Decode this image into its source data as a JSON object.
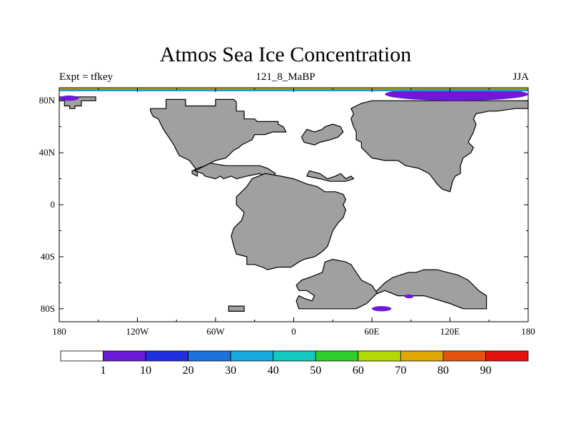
{
  "title": "Atmos Sea Ice Concentration",
  "left_label": "Expt = tfkey",
  "center_label": "121_8_MaBP",
  "right_label": "JJA",
  "chart_data": {
    "type": "heatmap",
    "x_axis": {
      "range": [
        -180,
        180
      ],
      "ticks": [
        -180,
        -120,
        -60,
        0,
        60,
        120,
        180
      ],
      "tick_labels": [
        "180",
        "120W",
        "60W",
        "0",
        "60E",
        "120E",
        "180"
      ]
    },
    "y_axis": {
      "range": [
        -90,
        90
      ],
      "ticks": [
        80,
        40,
        0,
        -40,
        -80
      ],
      "tick_labels": [
        "80N",
        "40N",
        "0",
        "40S",
        "80S"
      ]
    },
    "land_color": "#a0a0a0",
    "colorbar": {
      "levels": [
        "1",
        "10",
        "20",
        "30",
        "40",
        "50",
        "60",
        "70",
        "80",
        "90"
      ],
      "colors": [
        "#ffffff",
        "#6a1ad8",
        "#1f2fe0",
        "#1e72e0",
        "#16aadd",
        "#12c9c0",
        "#2dcf2a",
        "#b2d806",
        "#e0a800",
        "#e4530d",
        "#e51210"
      ]
    },
    "ice_regions": [
      {
        "lon": [
          -180,
          -165
        ],
        "lat": [
          80,
          84
        ],
        "value": "1-10"
      },
      {
        "lon": [
          70,
          180
        ],
        "lat": [
          80,
          90
        ],
        "value": "1-10"
      },
      {
        "lon": [
          60,
          75
        ],
        "lat": [
          -82,
          -78
        ],
        "value": "1-10"
      },
      {
        "lon": [
          85,
          92
        ],
        "lat": [
          -72,
          -69
        ],
        "value": "1-10"
      }
    ],
    "land_polygons": [
      [
        [
          -180,
          83
        ],
        [
          -152,
          83
        ],
        [
          -152,
          80
        ],
        [
          -163,
          80
        ],
        [
          -163,
          76
        ],
        [
          -168,
          76
        ],
        [
          -168,
          74
        ],
        [
          -172,
          74
        ],
        [
          -172,
          76
        ],
        [
          -176,
          76
        ],
        [
          -176,
          80
        ],
        [
          -180,
          80
        ]
      ],
      [
        [
          -98,
          81
        ],
        [
          -83,
          81
        ],
        [
          -83,
          76
        ],
        [
          -60,
          76
        ],
        [
          -60,
          81
        ],
        [
          -46,
          81
        ],
        [
          -44,
          79
        ],
        [
          -44,
          72
        ],
        [
          -38,
          72
        ],
        [
          -38,
          66
        ],
        [
          -30,
          66
        ],
        [
          -28,
          64
        ],
        [
          -12,
          64
        ],
        [
          -12,
          62
        ],
        [
          -8,
          60
        ],
        [
          -6,
          56
        ],
        [
          -16,
          56
        ],
        [
          -22,
          54
        ],
        [
          -30,
          54
        ],
        [
          -32,
          50
        ],
        [
          -36,
          48
        ],
        [
          -40,
          46
        ],
        [
          -42,
          44
        ],
        [
          -46,
          42
        ],
        [
          -52,
          36
        ],
        [
          -60,
          34
        ],
        [
          -64,
          32
        ],
        [
          -68,
          30
        ],
        [
          -74,
          28
        ],
        [
          -78,
          26
        ],
        [
          -78,
          24
        ],
        [
          -74,
          22
        ],
        [
          -74,
          26
        ],
        [
          -80,
          34
        ],
        [
          -88,
          38
        ],
        [
          -92,
          46
        ],
        [
          -96,
          52
        ],
        [
          -100,
          58
        ],
        [
          -102,
          62
        ],
        [
          -104,
          66
        ],
        [
          -108,
          68
        ],
        [
          -110,
          72
        ],
        [
          -110,
          74
        ],
        [
          -98,
          74
        ]
      ],
      [
        [
          -76,
          26
        ],
        [
          -70,
          24
        ],
        [
          -68,
          22
        ],
        [
          -60,
          20
        ],
        [
          -56,
          22
        ],
        [
          -54,
          20
        ],
        [
          -48,
          22
        ],
        [
          -44,
          20
        ],
        [
          -36,
          22
        ],
        [
          -26,
          24
        ],
        [
          -18,
          20
        ],
        [
          -14,
          24
        ],
        [
          -20,
          28
        ],
        [
          -26,
          30
        ],
        [
          -36,
          30
        ],
        [
          -44,
          30
        ],
        [
          -52,
          30
        ],
        [
          -64,
          32
        ]
      ],
      [
        [
          44,
          74
        ],
        [
          48,
          76
        ],
        [
          52,
          78
        ],
        [
          60,
          80
        ],
        [
          80,
          80
        ],
        [
          100,
          80
        ],
        [
          120,
          80
        ],
        [
          140,
          80
        ],
        [
          150,
          80
        ],
        [
          162,
          80
        ],
        [
          180,
          80
        ],
        [
          180,
          74
        ],
        [
          170,
          74
        ],
        [
          156,
          72
        ],
        [
          150,
          72
        ],
        [
          140,
          70
        ],
        [
          138,
          66
        ],
        [
          140,
          62
        ],
        [
          138,
          56
        ],
        [
          136,
          52
        ],
        [
          134,
          48
        ],
        [
          138,
          44
        ],
        [
          136,
          40
        ],
        [
          130,
          36
        ],
        [
          128,
          30
        ],
        [
          128,
          24
        ],
        [
          124,
          22
        ],
        [
          122,
          18
        ],
        [
          120,
          10
        ],
        [
          114,
          12
        ],
        [
          110,
          16
        ],
        [
          104,
          24
        ],
        [
          96,
          28
        ],
        [
          86,
          30
        ],
        [
          80,
          34
        ],
        [
          70,
          34
        ],
        [
          60,
          36
        ],
        [
          56,
          40
        ],
        [
          52,
          44
        ],
        [
          52,
          48
        ],
        [
          48,
          50
        ],
        [
          48,
          56
        ],
        [
          46,
          60
        ],
        [
          44,
          66
        ],
        [
          46,
          70
        ]
      ],
      [
        [
          24,
          60
        ],
        [
          30,
          62
        ],
        [
          36,
          60
        ],
        [
          38,
          56
        ],
        [
          34,
          52
        ],
        [
          28,
          50
        ],
        [
          20,
          48
        ],
        [
          16,
          46
        ],
        [
          8,
          48
        ],
        [
          6,
          52
        ],
        [
          10,
          58
        ],
        [
          16,
          56
        ],
        [
          22,
          58
        ]
      ],
      [
        [
          12,
          26
        ],
        [
          20,
          24
        ],
        [
          26,
          20
        ],
        [
          32,
          22
        ],
        [
          36,
          24
        ],
        [
          40,
          20
        ],
        [
          44,
          22
        ],
        [
          46,
          20
        ],
        [
          40,
          18
        ],
        [
          28,
          18
        ],
        [
          20,
          20
        ],
        [
          10,
          22
        ]
      ],
      [
        [
          -32,
          20
        ],
        [
          -22,
          24
        ],
        [
          -10,
          22
        ],
        [
          0,
          20
        ],
        [
          10,
          16
        ],
        [
          18,
          14
        ],
        [
          24,
          10
        ],
        [
          32,
          10
        ],
        [
          38,
          8
        ],
        [
          40,
          4
        ],
        [
          38,
          0
        ],
        [
          40,
          -4
        ],
        [
          38,
          -10
        ],
        [
          34,
          -14
        ],
        [
          30,
          -20
        ],
        [
          28,
          -26
        ],
        [
          26,
          -32
        ],
        [
          22,
          -36
        ],
        [
          16,
          -40
        ],
        [
          8,
          -42
        ],
        [
          4,
          -44
        ],
        [
          -2,
          -48
        ],
        [
          -12,
          -48
        ],
        [
          -20,
          -50
        ],
        [
          -24,
          -48
        ],
        [
          -30,
          -46
        ],
        [
          -36,
          -46
        ],
        [
          -36,
          -40
        ],
        [
          -44,
          -38
        ],
        [
          -46,
          -32
        ],
        [
          -48,
          -24
        ],
        [
          -46,
          -18
        ],
        [
          -40,
          -12
        ],
        [
          -38,
          -6
        ],
        [
          -44,
          0
        ],
        [
          -44,
          6
        ],
        [
          -40,
          10
        ],
        [
          -36,
          14
        ]
      ],
      [
        [
          60,
          -70
        ],
        [
          64,
          -66
        ],
        [
          70,
          -60
        ],
        [
          76,
          -56
        ],
        [
          82,
          -54
        ],
        [
          88,
          -52
        ],
        [
          94,
          -52
        ],
        [
          100,
          -50
        ],
        [
          110,
          -50
        ],
        [
          118,
          -52
        ],
        [
          126,
          -54
        ],
        [
          130,
          -56
        ],
        [
          134,
          -58
        ],
        [
          138,
          -62
        ],
        [
          142,
          -66
        ],
        [
          148,
          -70
        ],
        [
          148,
          -80
        ],
        [
          130,
          -80
        ],
        [
          120,
          -76
        ],
        [
          100,
          -70
        ],
        [
          90,
          -70
        ],
        [
          80,
          -70
        ],
        [
          70,
          -66
        ]
      ],
      [
        [
          4,
          -80
        ],
        [
          30,
          -80
        ],
        [
          48,
          -80
        ],
        [
          56,
          -76
        ],
        [
          64,
          -68
        ],
        [
          60,
          -62
        ],
        [
          52,
          -58
        ],
        [
          48,
          -52
        ],
        [
          44,
          -46
        ],
        [
          40,
          -44
        ],
        [
          30,
          -42
        ],
        [
          24,
          -44
        ],
        [
          22,
          -52
        ],
        [
          12,
          -56
        ],
        [
          6,
          -58
        ],
        [
          2,
          -62
        ],
        [
          4,
          -66
        ],
        [
          10,
          -66
        ],
        [
          16,
          -70
        ],
        [
          14,
          -74
        ],
        [
          8,
          -72
        ],
        [
          4,
          -70
        ],
        [
          2,
          -74
        ]
      ],
      [
        [
          -50,
          -82
        ],
        [
          -38,
          -82
        ],
        [
          -38,
          -78
        ],
        [
          -50,
          -78
        ]
      ]
    ]
  }
}
